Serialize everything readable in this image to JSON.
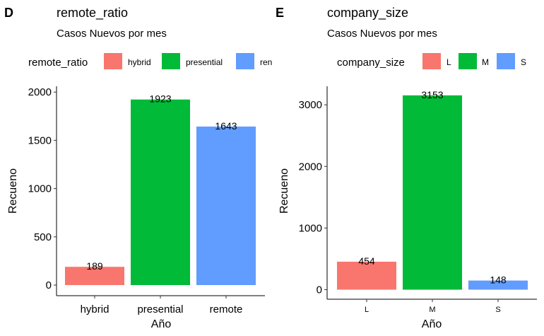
{
  "chart_data": [
    {
      "type": "bar",
      "panel_tag": "D",
      "title": "remote_ratio",
      "subtitle": "Casos Nuevos por mes",
      "legend_title": "remote_ratio",
      "legend_labels": [
        "hybrid",
        "presential",
        "ren"
      ],
      "legend_placement": "top",
      "categories": [
        "hybrid",
        "presential",
        "remote"
      ],
      "values": [
        189,
        1923,
        1643
      ],
      "colors": [
        "#F8766D",
        "#00BA38",
        "#619CFF"
      ],
      "xlabel": "Año",
      "ylabel": "Recueno",
      "yticks": [
        "0",
        "500",
        "1000",
        "1500",
        "2000"
      ],
      "ylim": [
        -110,
        2060
      ],
      "grid": false
    },
    {
      "type": "bar",
      "panel_tag": "E",
      "title": "company_size",
      "subtitle": "Casos Nuevos por mes",
      "legend_title": "company_size",
      "legend_labels": [
        "L",
        "M",
        "S"
      ],
      "legend_placement": "top",
      "categories": [
        "L",
        "M",
        "S"
      ],
      "values": [
        454,
        3153,
        148
      ],
      "colors": [
        "#F8766D",
        "#00BA38",
        "#619CFF"
      ],
      "xlabel": "Año",
      "ylabel": "Recueno",
      "yticks": [
        "0",
        "1000",
        "2000",
        "3000"
      ],
      "ylim": [
        -155,
        3300
      ],
      "grid": false
    }
  ]
}
